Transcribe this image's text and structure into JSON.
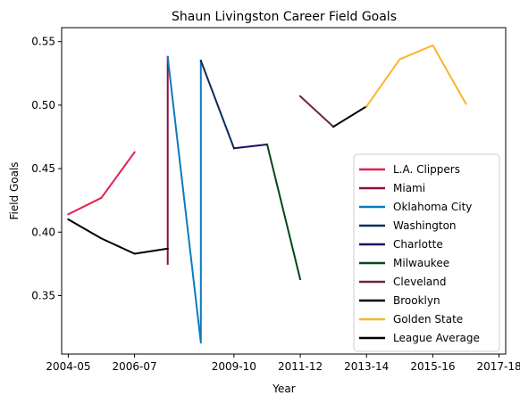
{
  "chart_data": {
    "type": "line",
    "title": "Shaun Livingston Career Field Goals",
    "xlabel": "Year",
    "ylabel": "Field Goals",
    "x_tick_labels": [
      "2004-05",
      "2006-07",
      "2009-10",
      "2011-12",
      "2013-14",
      "2015-16",
      "2017-18"
    ],
    "x_tick_values": [
      2004,
      2006,
      2009,
      2011,
      2013,
      2015,
      2017
    ],
    "y_ticks": [
      0.35,
      0.4,
      0.45,
      0.5,
      0.55
    ],
    "y_tick_labels": [
      "0.35",
      "0.40",
      "0.45",
      "0.50",
      "0.55"
    ],
    "xlim": [
      2003.8,
      2017.2
    ],
    "ylim": [
      0.304,
      0.561
    ],
    "grid": false,
    "legend_position": "lower-right",
    "series": [
      {
        "name": "L.A. Clippers",
        "color": "#e31f4f",
        "x": [
          2004,
          2005,
          2006
        ],
        "y": [
          0.414,
          0.427,
          0.463
        ]
      },
      {
        "name": "Miami",
        "color": "#8b0e3e",
        "x": [
          2007,
          2007
        ],
        "y": [
          0.538,
          0.375
        ]
      },
      {
        "name": "Oklahoma City",
        "color": "#0b7bbd",
        "x": [
          2007,
          2008,
          2008
        ],
        "y": [
          0.538,
          0.313,
          0.535
        ]
      },
      {
        "name": "Washington",
        "color": "#0c2b5a",
        "x": [
          2008,
          2009
        ],
        "y": [
          0.535,
          0.466
        ]
      },
      {
        "name": "Charlotte",
        "color": "#1d1060",
        "x": [
          2009,
          2010
        ],
        "y": [
          0.466,
          0.469
        ]
      },
      {
        "name": "Milwaukee",
        "color": "#00471b",
        "x": [
          2010,
          2011
        ],
        "y": [
          0.469,
          0.363
        ]
      },
      {
        "name": "Cleveland",
        "color": "#6f263d",
        "x": [
          2011,
          2012
        ],
        "y": [
          0.507,
          0.483
        ]
      },
      {
        "name": "Brooklyn",
        "color": "#000000",
        "x": [
          2012,
          2013
        ],
        "y": [
          0.483,
          0.499
        ]
      },
      {
        "name": "Golden State",
        "color": "#f9b52c",
        "x": [
          2013,
          2014,
          2015,
          2016
        ],
        "y": [
          0.499,
          0.536,
          0.547,
          0.501
        ]
      },
      {
        "name": "League Average",
        "color": "#000000",
        "x": [
          2004,
          2005,
          2006,
          2007
        ],
        "y": [
          0.41,
          0.395,
          0.383,
          0.387
        ]
      }
    ]
  }
}
